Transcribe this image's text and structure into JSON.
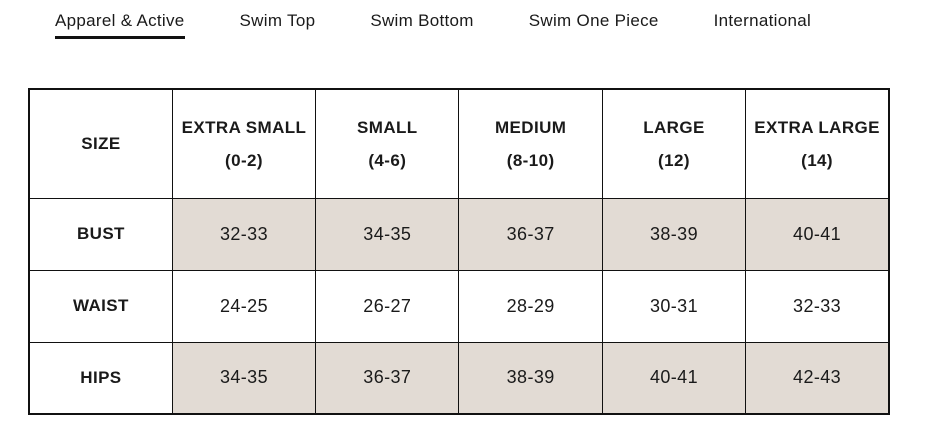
{
  "tabs": {
    "items": [
      {
        "label": "Apparel & Active",
        "active": true
      },
      {
        "label": "Swim Top",
        "active": false
      },
      {
        "label": "Swim Bottom",
        "active": false
      },
      {
        "label": "Swim One Piece",
        "active": false
      },
      {
        "label": "International",
        "active": false
      }
    ]
  },
  "table": {
    "columns": [
      {
        "line1": "SIZE",
        "line2": ""
      },
      {
        "line1": "EXTRA SMALL",
        "line2": "(0-2)"
      },
      {
        "line1": "SMALL",
        "line2": "(4-6)"
      },
      {
        "line1": "MEDIUM",
        "line2": "(8-10)"
      },
      {
        "line1": "LARGE",
        "line2": "(12)"
      },
      {
        "line1": "EXTRA LARGE",
        "line2": "(14)"
      }
    ],
    "rows": [
      {
        "label": "BUST",
        "shaded": true,
        "values": [
          "32-33",
          "34-35",
          "36-37",
          "38-39",
          "40-41"
        ]
      },
      {
        "label": "WAIST",
        "shaded": false,
        "values": [
          "24-25",
          "26-27",
          "28-29",
          "30-31",
          "32-33"
        ]
      },
      {
        "label": "HIPS",
        "shaded": true,
        "values": [
          "34-35",
          "36-37",
          "38-39",
          "40-41",
          "42-43"
        ]
      }
    ]
  },
  "colors": {
    "row_shade": "#e2dbd4",
    "text": "#1a1a1a",
    "border": "#111111",
    "active_tab_underline": "#111111"
  }
}
